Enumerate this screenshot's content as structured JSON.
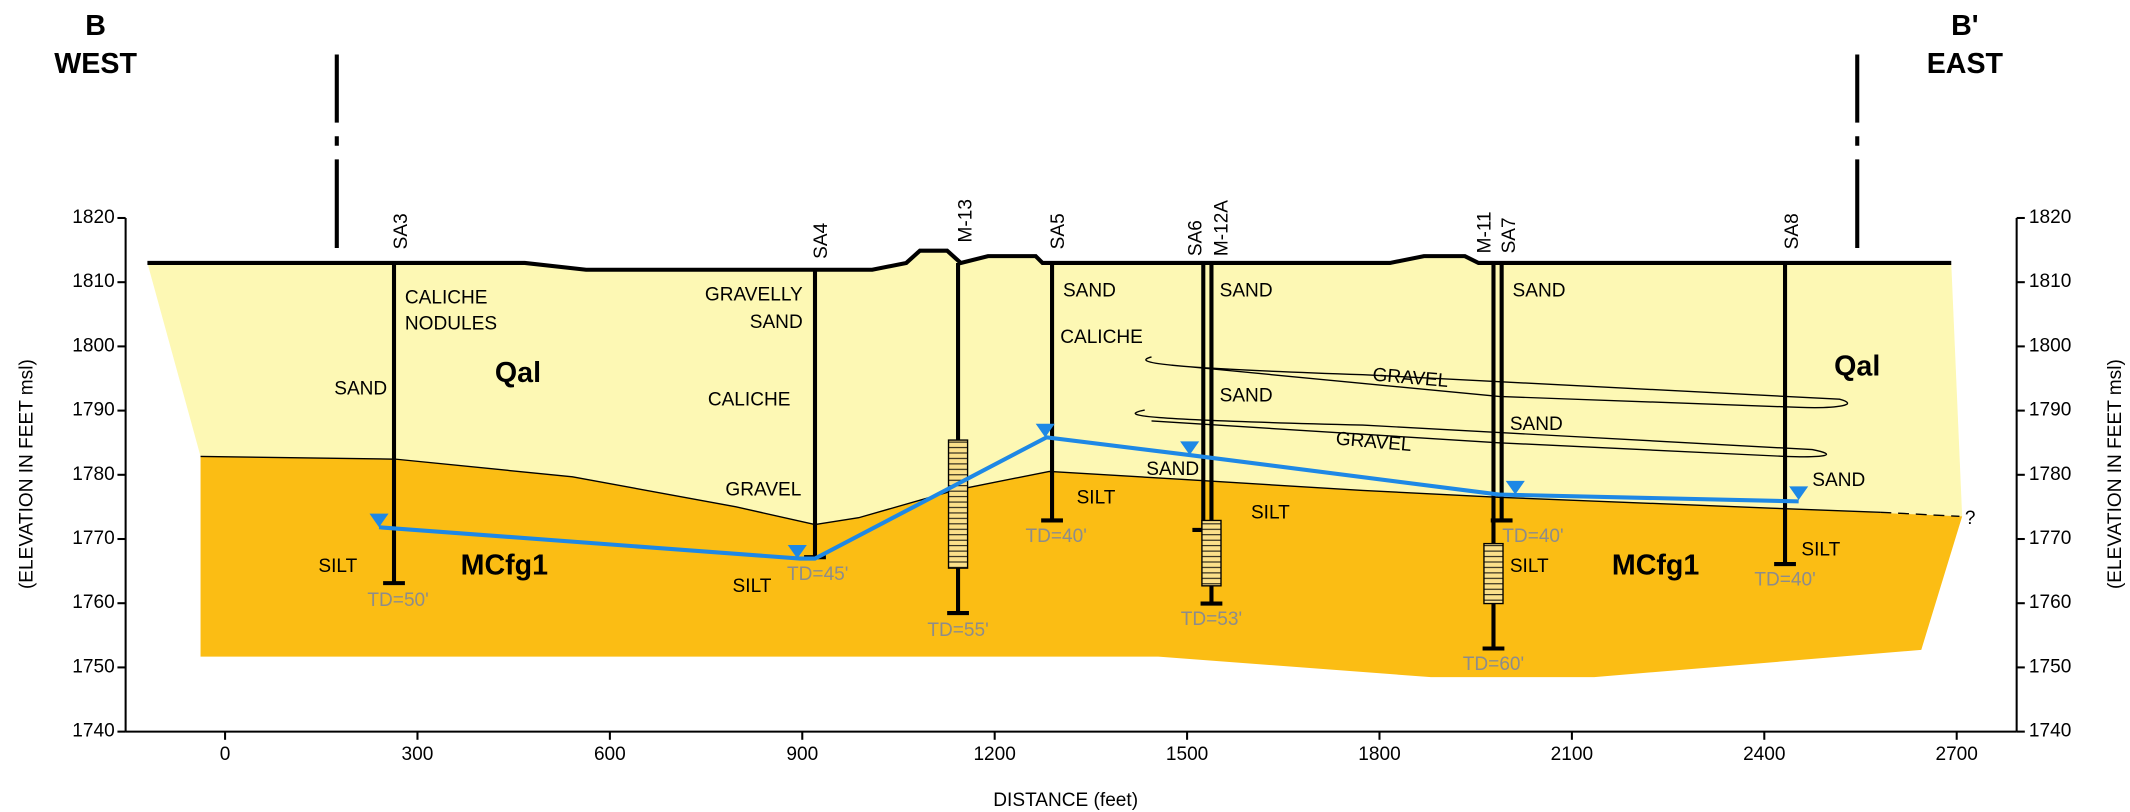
{
  "header": {
    "left_letter": "B",
    "left_direction": "WEST",
    "right_letter": "B'",
    "right_direction": "EAST"
  },
  "axes": {
    "x_title": "DISTANCE (feet)",
    "y_title": "(ELEVATION IN FEET msl)",
    "x_ticks": [
      0,
      300,
      600,
      900,
      1200,
      1500,
      1800,
      2100,
      2400,
      2700
    ],
    "y_ticks": [
      1820,
      1810,
      1800,
      1790,
      1780,
      1770,
      1760,
      1750,
      1740
    ]
  },
  "unit_labels": [
    "Qal",
    "Qal",
    "MCfg1",
    "MCfg1"
  ],
  "wells": [
    {
      "name": "SA3",
      "total_depth": "TD=50'"
    },
    {
      "name": "SA4",
      "total_depth": "TD=45'"
    },
    {
      "name": "M-13",
      "total_depth": "TD=55'"
    },
    {
      "name": "SA5",
      "total_depth": "TD=40'"
    },
    {
      "name": "SA6"
    },
    {
      "name": "M-12A",
      "total_depth": "TD=53'"
    },
    {
      "name": "M-11",
      "total_depth": "TD=60'"
    },
    {
      "name": "SA7",
      "total_depth": "TD=40'"
    },
    {
      "name": "SA8",
      "total_depth": "TD=40'"
    }
  ],
  "lithology_labels": [
    "CALICHE",
    "NODULES",
    "SAND",
    "GRAVELLY",
    "SAND",
    "CALICHE",
    "GRAVEL",
    "SILT",
    "SILT",
    "SAND",
    "CALICHE",
    "SILT",
    "SAND",
    "SILT",
    "SAND",
    "SAND",
    "GRAVEL",
    "GRAVEL",
    "SAND",
    "SAND",
    "SILT",
    "SAND",
    "SILT",
    "?"
  ]
}
